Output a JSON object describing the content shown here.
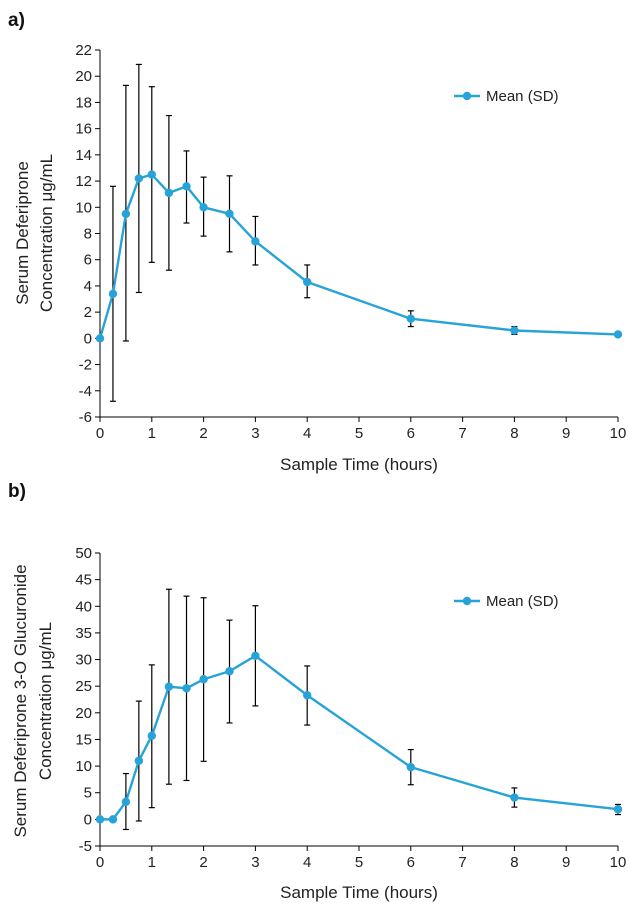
{
  "colors": {
    "series": "#27a3d8",
    "axis": "#000000",
    "error": "#000000"
  },
  "chart_data": [
    {
      "panel_label": "a)",
      "type": "line",
      "xlabel": "Sample Time (hours)",
      "ylabel_lines": [
        "Serum Deferiprone",
        "Concentration μg/mL"
      ],
      "xlim": [
        0,
        10
      ],
      "ylim": [
        -6,
        22
      ],
      "xticks": [
        0,
        1,
        2,
        3,
        4,
        5,
        6,
        7,
        8,
        9,
        10
      ],
      "yticks": [
        -6,
        -4,
        -2,
        0,
        2,
        4,
        6,
        8,
        10,
        12,
        14,
        16,
        18,
        20,
        22
      ],
      "grid": false,
      "legend_position": "top-right",
      "series": [
        {
          "name": "Mean (SD)",
          "x": [
            0,
            0.25,
            0.5,
            0.75,
            1,
            1.33,
            1.67,
            2,
            2.5,
            3,
            4,
            6,
            8,
            10
          ],
          "y": [
            0,
            3.4,
            9.5,
            12.2,
            12.5,
            11.1,
            11.6,
            10.0,
            9.5,
            7.4,
            4.3,
            1.5,
            0.6,
            0.3
          ],
          "err_low": [
            0,
            -4.8,
            -0.2,
            3.5,
            5.8,
            5.2,
            8.8,
            7.8,
            6.6,
            5.6,
            3.1,
            0.9,
            0.3,
            0.3
          ],
          "err_high": [
            0,
            11.6,
            19.3,
            20.9,
            19.2,
            17.0,
            14.3,
            12.3,
            12.4,
            9.3,
            5.6,
            2.1,
            0.9,
            0.3
          ]
        }
      ]
    },
    {
      "panel_label": "b)",
      "type": "line",
      "xlabel": "Sample Time (hours)",
      "ylabel_lines": [
        "Serum Deferiprone 3-O Glucuronide",
        "Concentration μg/mL"
      ],
      "xlim": [
        0,
        10
      ],
      "ylim": [
        -5,
        50
      ],
      "xticks": [
        0,
        1,
        2,
        3,
        4,
        5,
        6,
        7,
        8,
        9,
        10
      ],
      "yticks": [
        -5,
        0,
        5,
        10,
        15,
        20,
        25,
        30,
        35,
        40,
        45,
        50
      ],
      "grid": false,
      "legend_position": "top-right",
      "series": [
        {
          "name": "Mean (SD)",
          "x": [
            0,
            0.25,
            0.5,
            0.75,
            1,
            1.33,
            1.67,
            2,
            2.5,
            3,
            4,
            6,
            8,
            10
          ],
          "y": [
            0,
            0,
            3.3,
            11.0,
            15.7,
            24.9,
            24.6,
            26.3,
            27.8,
            30.7,
            23.3,
            9.8,
            4.1,
            1.9
          ],
          "err_low": [
            0,
            0,
            -1.9,
            -0.3,
            2.2,
            6.6,
            7.3,
            10.9,
            18.1,
            21.3,
            17.7,
            6.5,
            2.3,
            0.9
          ],
          "err_high": [
            0,
            0,
            8.6,
            22.2,
            29.0,
            43.2,
            41.9,
            41.6,
            37.4,
            40.1,
            28.8,
            13.1,
            5.9,
            2.8
          ]
        }
      ]
    }
  ]
}
